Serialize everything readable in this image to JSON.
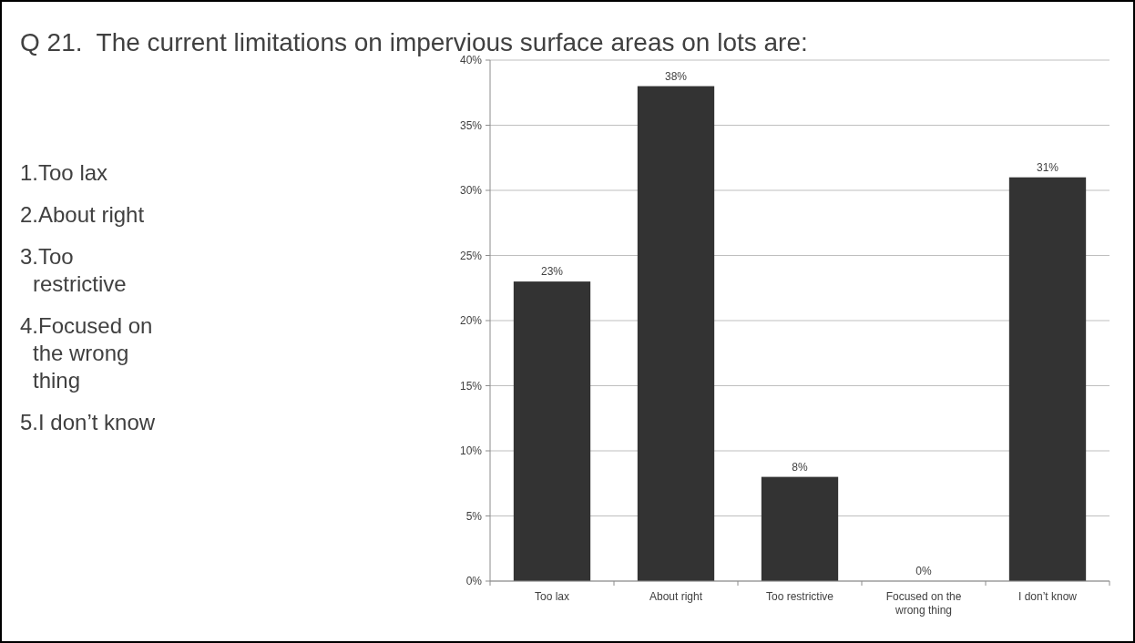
{
  "chart_data": {
    "type": "bar",
    "title": "Q 21.  The current limitations on impervious surface areas on lots are:",
    "annotations": [
      "1.Too lax",
      "2.About right",
      "3.Too restrictive",
      "4.Focused on the wrong thing",
      "5.I don’t know"
    ],
    "categories": [
      "Too lax",
      "About right",
      "Too restrictive",
      "Focused on the wrong thing",
      "I don’t know"
    ],
    "values": [
      23,
      38,
      8,
      0,
      31
    ],
    "value_labels": [
      "23%",
      "38%",
      "8%",
      "0%",
      "31%"
    ],
    "color": "#333333",
    "ylim": [
      0,
      40
    ],
    "yticks": [
      {
        "value": 0,
        "label": "0%"
      },
      {
        "value": 5,
        "label": "5%"
      },
      {
        "value": 10,
        "label": "10%"
      },
      {
        "value": 15,
        "label": "15%"
      },
      {
        "value": 20,
        "label": "20%"
      },
      {
        "value": 25,
        "label": "25%"
      },
      {
        "value": 30,
        "label": "30%"
      },
      {
        "value": 35,
        "label": "35%"
      },
      {
        "value": 40,
        "label": "40%"
      }
    ],
    "grid": "y"
  }
}
